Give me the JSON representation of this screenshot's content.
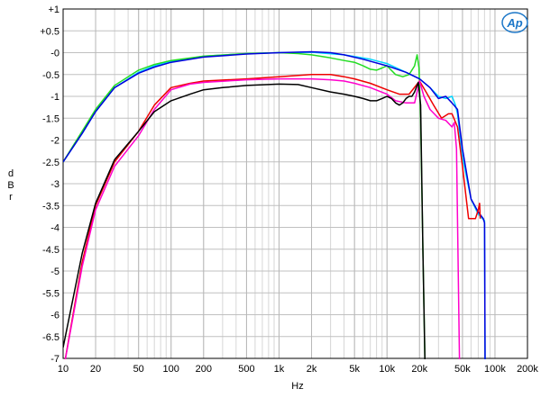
{
  "chart_data": {
    "type": "line",
    "title": "",
    "xlabel": "Hz",
    "ylabel": "dBr",
    "ylabel_letters": [
      "d",
      "B",
      "r"
    ],
    "x_scale": "log",
    "xlim": [
      10,
      200000
    ],
    "ylim": [
      -7,
      1
    ],
    "grid": true,
    "logo_text": "Ap",
    "logo_color": "#1a76c8",
    "x_ticks": [
      {
        "v": 10,
        "label": "10"
      },
      {
        "v": 20,
        "label": "20"
      },
      {
        "v": 50,
        "label": "50"
      },
      {
        "v": 100,
        "label": "100"
      },
      {
        "v": 200,
        "label": "200"
      },
      {
        "v": 500,
        "label": "500"
      },
      {
        "v": 1000,
        "label": "1k"
      },
      {
        "v": 2000,
        "label": "2k"
      },
      {
        "v": 5000,
        "label": "5k"
      },
      {
        "v": 10000,
        "label": "10k"
      },
      {
        "v": 20000,
        "label": "20k"
      },
      {
        "v": 50000,
        "label": "50k"
      },
      {
        "v": 100000,
        "label": "100k"
      },
      {
        "v": 200000,
        "label": "200k"
      }
    ],
    "y_ticks": [
      {
        "v": 1,
        "label": "+1"
      },
      {
        "v": 0.5,
        "label": "+0.5"
      },
      {
        "v": 0,
        "label": "-0"
      },
      {
        "v": -0.5,
        "label": "-0.5"
      },
      {
        "v": -1,
        "label": "-1"
      },
      {
        "v": -1.5,
        "label": "-1.5"
      },
      {
        "v": -2,
        "label": "-2"
      },
      {
        "v": -2.5,
        "label": "-2.5"
      },
      {
        "v": -3,
        "label": "-3"
      },
      {
        "v": -3.5,
        "label": "-3.5"
      },
      {
        "v": -4,
        "label": "-4"
      },
      {
        "v": -4.5,
        "label": "-4.5"
      },
      {
        "v": -5,
        "label": "-5"
      },
      {
        "v": -5.5,
        "label": "-5.5"
      },
      {
        "v": -6,
        "label": "-6"
      },
      {
        "v": -6.5,
        "label": "-6.5"
      },
      {
        "v": -7,
        "label": "-7"
      }
    ],
    "series": [
      {
        "color": "#00d4ff",
        "points": [
          [
            10,
            -2.5
          ],
          [
            15,
            -1.85
          ],
          [
            20,
            -1.35
          ],
          [
            30,
            -0.8
          ],
          [
            50,
            -0.45
          ],
          [
            70,
            -0.3
          ],
          [
            100,
            -0.2
          ],
          [
            200,
            -0.08
          ],
          [
            500,
            -0.02
          ],
          [
            1000,
            0
          ],
          [
            2000,
            0.01
          ],
          [
            4000,
            -0.05
          ],
          [
            7000,
            -0.15
          ],
          [
            10000,
            -0.25
          ],
          [
            15000,
            -0.45
          ],
          [
            20000,
            -0.6
          ],
          [
            25000,
            -0.8
          ],
          [
            30000,
            -1.0
          ],
          [
            35000,
            -1.05
          ],
          [
            40000,
            -1.0
          ],
          [
            43000,
            -1.2
          ],
          [
            45000,
            -1.4
          ],
          [
            50000,
            -2.4
          ],
          [
            60000,
            -3.35
          ],
          [
            70000,
            -3.7
          ],
          [
            80000,
            -3.85
          ],
          [
            81000,
            -7.2
          ]
        ]
      },
      {
        "color": "#22dd22",
        "points": [
          [
            10,
            -2.5
          ],
          [
            15,
            -1.8
          ],
          [
            20,
            -1.3
          ],
          [
            30,
            -0.75
          ],
          [
            50,
            -0.4
          ],
          [
            70,
            -0.27
          ],
          [
            100,
            -0.18
          ],
          [
            200,
            -0.08
          ],
          [
            500,
            -0.02
          ],
          [
            1000,
            0
          ],
          [
            1500,
            -0.02
          ],
          [
            2000,
            -0.05
          ],
          [
            3000,
            -0.12
          ],
          [
            4000,
            -0.18
          ],
          [
            5000,
            -0.22
          ],
          [
            6000,
            -0.3
          ],
          [
            7000,
            -0.38
          ],
          [
            8000,
            -0.4
          ],
          [
            9000,
            -0.35
          ],
          [
            10000,
            -0.3
          ],
          [
            12000,
            -0.5
          ],
          [
            14000,
            -0.55
          ],
          [
            16000,
            -0.5
          ],
          [
            18000,
            -0.3
          ],
          [
            19000,
            -0.05
          ],
          [
            19800,
            -0.35
          ],
          [
            20500,
            -1.5
          ],
          [
            21500,
            -4.5
          ],
          [
            22500,
            -7.2
          ]
        ]
      },
      {
        "color": "#0000dd",
        "points": [
          [
            10,
            -2.5
          ],
          [
            15,
            -1.85
          ],
          [
            20,
            -1.35
          ],
          [
            30,
            -0.8
          ],
          [
            50,
            -0.47
          ],
          [
            70,
            -0.33
          ],
          [
            100,
            -0.22
          ],
          [
            200,
            -0.1
          ],
          [
            500,
            -0.03
          ],
          [
            1000,
            0
          ],
          [
            2000,
            0.02
          ],
          [
            3000,
            0.0
          ],
          [
            4000,
            -0.05
          ],
          [
            6000,
            -0.15
          ],
          [
            10000,
            -0.3
          ],
          [
            15000,
            -0.45
          ],
          [
            20000,
            -0.6
          ],
          [
            25000,
            -0.8
          ],
          [
            30000,
            -1.05
          ],
          [
            35000,
            -1.0
          ],
          [
            40000,
            -1.15
          ],
          [
            45000,
            -1.3
          ],
          [
            50000,
            -2.2
          ],
          [
            60000,
            -3.35
          ],
          [
            70000,
            -3.65
          ],
          [
            78000,
            -3.8
          ],
          [
            80000,
            -3.9
          ],
          [
            81000,
            -7.2
          ]
        ]
      },
      {
        "color": "#ee0000",
        "points": [
          [
            10,
            -7.3
          ],
          [
            15,
            -4.8
          ],
          [
            20,
            -3.5
          ],
          [
            30,
            -2.5
          ],
          [
            50,
            -1.8
          ],
          [
            70,
            -1.2
          ],
          [
            100,
            -0.8
          ],
          [
            150,
            -0.7
          ],
          [
            200,
            -0.65
          ],
          [
            500,
            -0.6
          ],
          [
            1000,
            -0.55
          ],
          [
            2000,
            -0.5
          ],
          [
            3000,
            -0.5
          ],
          [
            4000,
            -0.55
          ],
          [
            5000,
            -0.6
          ],
          [
            7000,
            -0.7
          ],
          [
            10000,
            -0.85
          ],
          [
            13000,
            -0.95
          ],
          [
            16000,
            -0.95
          ],
          [
            20000,
            -0.65
          ],
          [
            23000,
            -0.9
          ],
          [
            27000,
            -1.2
          ],
          [
            32000,
            -1.5
          ],
          [
            37000,
            -1.4
          ],
          [
            40000,
            -1.4
          ],
          [
            45000,
            -1.7
          ],
          [
            50000,
            -2.6
          ],
          [
            57000,
            -3.8
          ],
          [
            66000,
            -3.8
          ],
          [
            70000,
            -3.6
          ],
          [
            72000,
            -3.45
          ],
          [
            73000,
            -3.8
          ]
        ]
      },
      {
        "color": "#ff00cc",
        "points": [
          [
            10,
            -7.3
          ],
          [
            15,
            -4.9
          ],
          [
            20,
            -3.6
          ],
          [
            30,
            -2.6
          ],
          [
            50,
            -1.9
          ],
          [
            70,
            -1.3
          ],
          [
            100,
            -0.85
          ],
          [
            150,
            -0.72
          ],
          [
            200,
            -0.68
          ],
          [
            500,
            -0.62
          ],
          [
            1000,
            -0.6
          ],
          [
            2000,
            -0.6
          ],
          [
            3000,
            -0.62
          ],
          [
            4000,
            -0.65
          ],
          [
            5000,
            -0.7
          ],
          [
            7000,
            -0.8
          ],
          [
            10000,
            -0.95
          ],
          [
            12000,
            -1.1
          ],
          [
            15000,
            -1.15
          ],
          [
            18000,
            -1.15
          ],
          [
            20000,
            -0.65
          ],
          [
            22000,
            -1.0
          ],
          [
            25000,
            -1.3
          ],
          [
            30000,
            -1.5
          ],
          [
            35000,
            -1.55
          ],
          [
            40000,
            -1.7
          ],
          [
            42000,
            -1.6
          ],
          [
            44000,
            -2.2
          ],
          [
            47000,
            -7.2
          ]
        ]
      },
      {
        "color": "#000000",
        "points": [
          [
            10,
            -6.75
          ],
          [
            15,
            -4.6
          ],
          [
            20,
            -3.45
          ],
          [
            30,
            -2.45
          ],
          [
            50,
            -1.8
          ],
          [
            70,
            -1.35
          ],
          [
            100,
            -1.1
          ],
          [
            150,
            -0.95
          ],
          [
            200,
            -0.85
          ],
          [
            300,
            -0.8
          ],
          [
            500,
            -0.75
          ],
          [
            1000,
            -0.72
          ],
          [
            1500,
            -0.73
          ],
          [
            2000,
            -0.8
          ],
          [
            3000,
            -0.9
          ],
          [
            4000,
            -0.95
          ],
          [
            5000,
            -1.0
          ],
          [
            6000,
            -1.05
          ],
          [
            7000,
            -1.1
          ],
          [
            8000,
            -1.1
          ],
          [
            9000,
            -1.05
          ],
          [
            10000,
            -1.0
          ],
          [
            11000,
            -1.05
          ],
          [
            12000,
            -1.15
          ],
          [
            13000,
            -1.2
          ],
          [
            14000,
            -1.15
          ],
          [
            15000,
            -1.05
          ],
          [
            16000,
            -1.0
          ],
          [
            17000,
            -1.0
          ],
          [
            18000,
            -0.9
          ],
          [
            19500,
            -0.68
          ],
          [
            20500,
            -1.2
          ],
          [
            21500,
            -4.5
          ],
          [
            22500,
            -7.2
          ]
        ]
      }
    ]
  }
}
